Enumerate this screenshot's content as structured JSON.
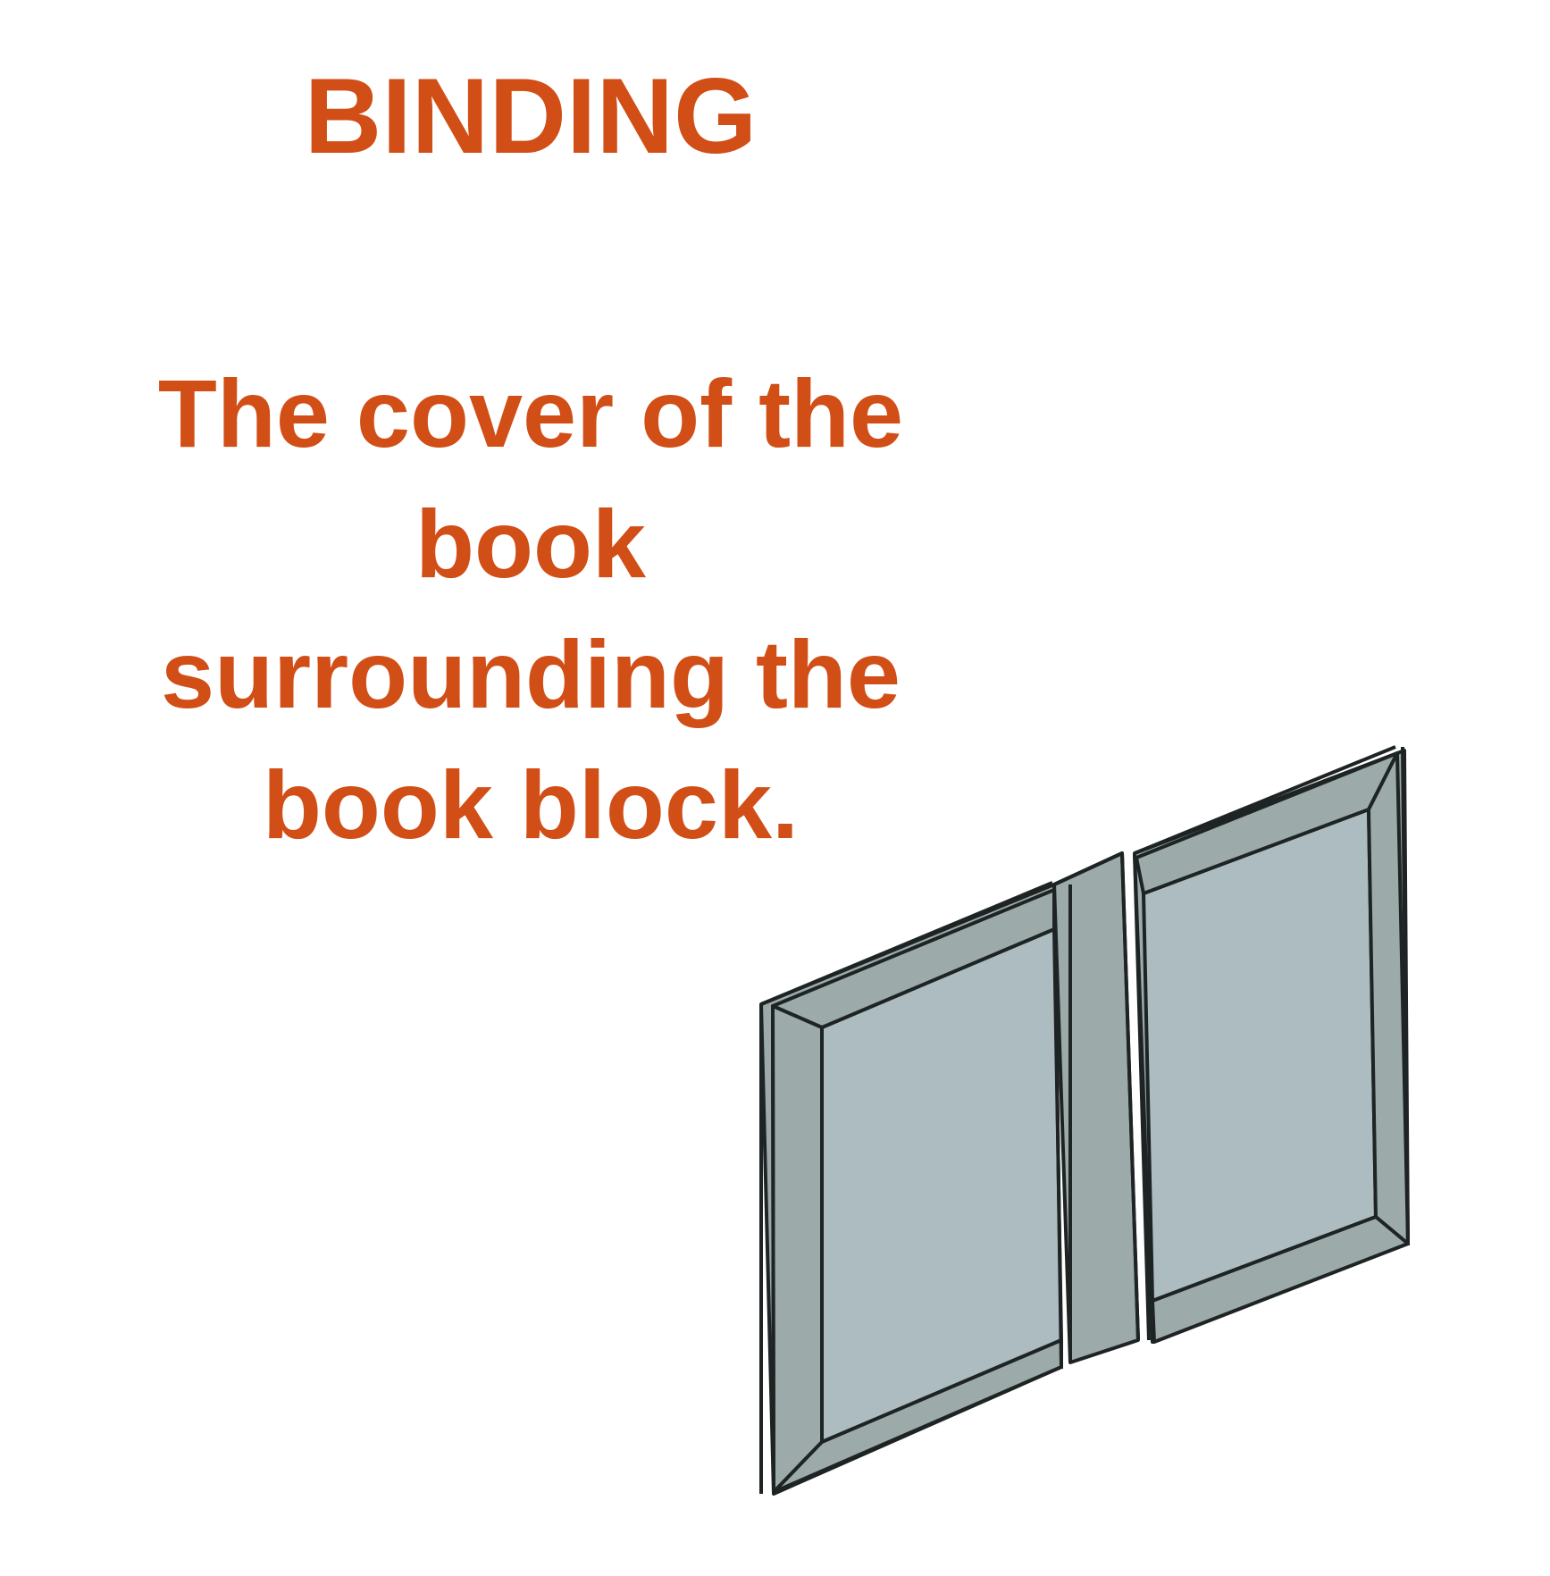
{
  "heading": "BINDING",
  "definition_lines": [
    "The cover of the",
    "book",
    "surrounding the",
    "book block."
  ],
  "colors": {
    "text": "#D14E17",
    "cover_face": "#ACBCC0",
    "cover_edge": "#9CABAA",
    "spine": "#9CAAA9",
    "outline": "#1E2424"
  },
  "illustration": {
    "icon": "open-book-cover-icon"
  }
}
